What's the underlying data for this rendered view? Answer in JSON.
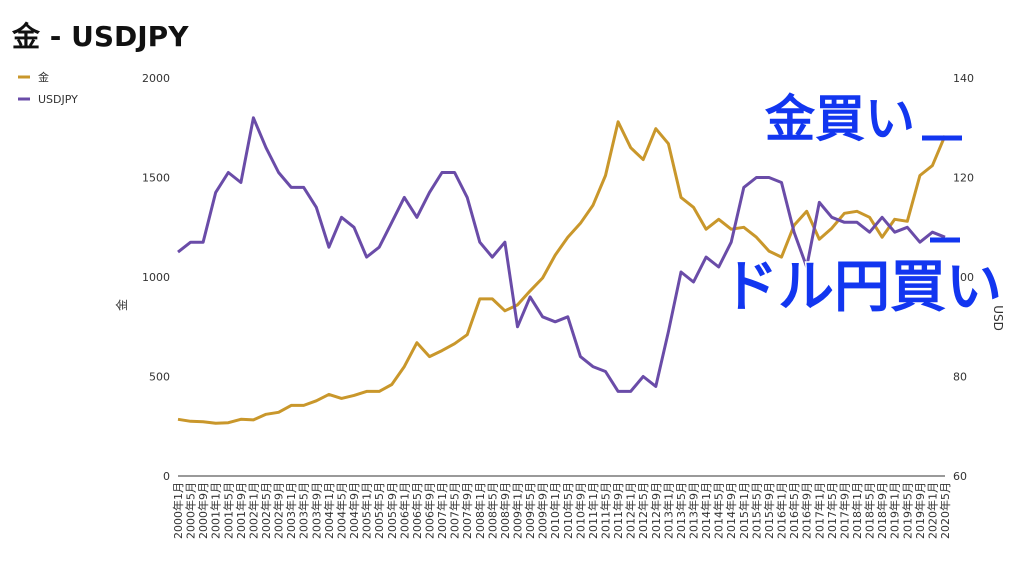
{
  "chart_data": {
    "type": "line",
    "title": "金 - USDJPY",
    "y_label": "金",
    "y2_label": "USD",
    "annotations": [
      "金買い",
      "ドル円買い"
    ],
    "categories": [
      "2000年1月",
      "2000年5月",
      "2000年9月",
      "2001年1月",
      "2001年5月",
      "2001年9月",
      "2002年1月",
      "2002年5月",
      "2002年9月",
      "2003年1月",
      "2003年5月",
      "2003年9月",
      "2004年1月",
      "2004年5月",
      "2004年9月",
      "2005年1月",
      "2005年5月",
      "2005年9月",
      "2006年1月",
      "2006年5月",
      "2006年9月",
      "2007年1月",
      "2007年5月",
      "2007年9月",
      "2008年1月",
      "2008年5月",
      "2008年9月",
      "2009年1月",
      "2009年5月",
      "2009年9月",
      "2010年1月",
      "2010年5月",
      "2010年9月",
      "2011年1月",
      "2011年5月",
      "2011年9月",
      "2012年1月",
      "2012年5月",
      "2012年9月",
      "2013年1月",
      "2013年5月",
      "2013年9月",
      "2014年1月",
      "2014年5月",
      "2014年9月",
      "2015年1月",
      "2015年5月",
      "2015年9月",
      "2016年1月",
      "2016年5月",
      "2016年9月",
      "2017年1月",
      "2017年5月",
      "2017年9月",
      "2018年1月",
      "2018年5月",
      "2018年9月",
      "2019年1月",
      "2019年5月",
      "2019年9月",
      "2020年1月",
      "2020年5月"
    ],
    "series": [
      {
        "name": "金",
        "color": "#c9972b",
        "axis": "y",
        "values": [
          285,
          275,
          273,
          265,
          268,
          285,
          282,
          310,
          320,
          355,
          355,
          378,
          410,
          390,
          405,
          425,
          425,
          460,
          550,
          670,
          600,
          630,
          665,
          710,
          890,
          890,
          830,
          860,
          930,
          995,
          1110,
          1200,
          1270,
          1360,
          1510,
          1780,
          1650,
          1590,
          1745,
          1670,
          1400,
          1350,
          1240,
          1290,
          1240,
          1250,
          1200,
          1130,
          1100,
          1260,
          1330,
          1190,
          1245,
          1320,
          1330,
          1300,
          1200,
          1290,
          1280,
          1510,
          1560,
          1710
        ]
      },
      {
        "name": "USDJPY",
        "color": "#6a4ca8",
        "axis": "y2",
        "values": [
          105,
          107,
          107,
          117,
          121,
          119,
          132,
          126,
          121,
          118,
          118,
          114,
          106,
          112,
          110,
          104,
          106,
          111,
          116,
          112,
          117,
          121,
          121,
          116,
          107,
          104,
          107,
          90,
          96,
          92,
          91,
          92,
          84,
          82,
          81,
          77,
          77,
          80,
          78,
          89,
          101,
          99,
          104,
          102,
          107,
          118,
          120,
          120,
          119,
          109,
          102,
          115,
          112,
          111,
          111,
          109,
          112,
          109,
          110,
          107,
          109,
          108
        ]
      }
    ],
    "ylim": [
      0,
      2000
    ],
    "yticks": [
      0,
      500,
      1000,
      1500,
      2000
    ],
    "y2lim": [
      60,
      140
    ],
    "y2ticks": [
      60,
      80,
      100,
      120,
      140
    ],
    "legend": "top-left"
  }
}
